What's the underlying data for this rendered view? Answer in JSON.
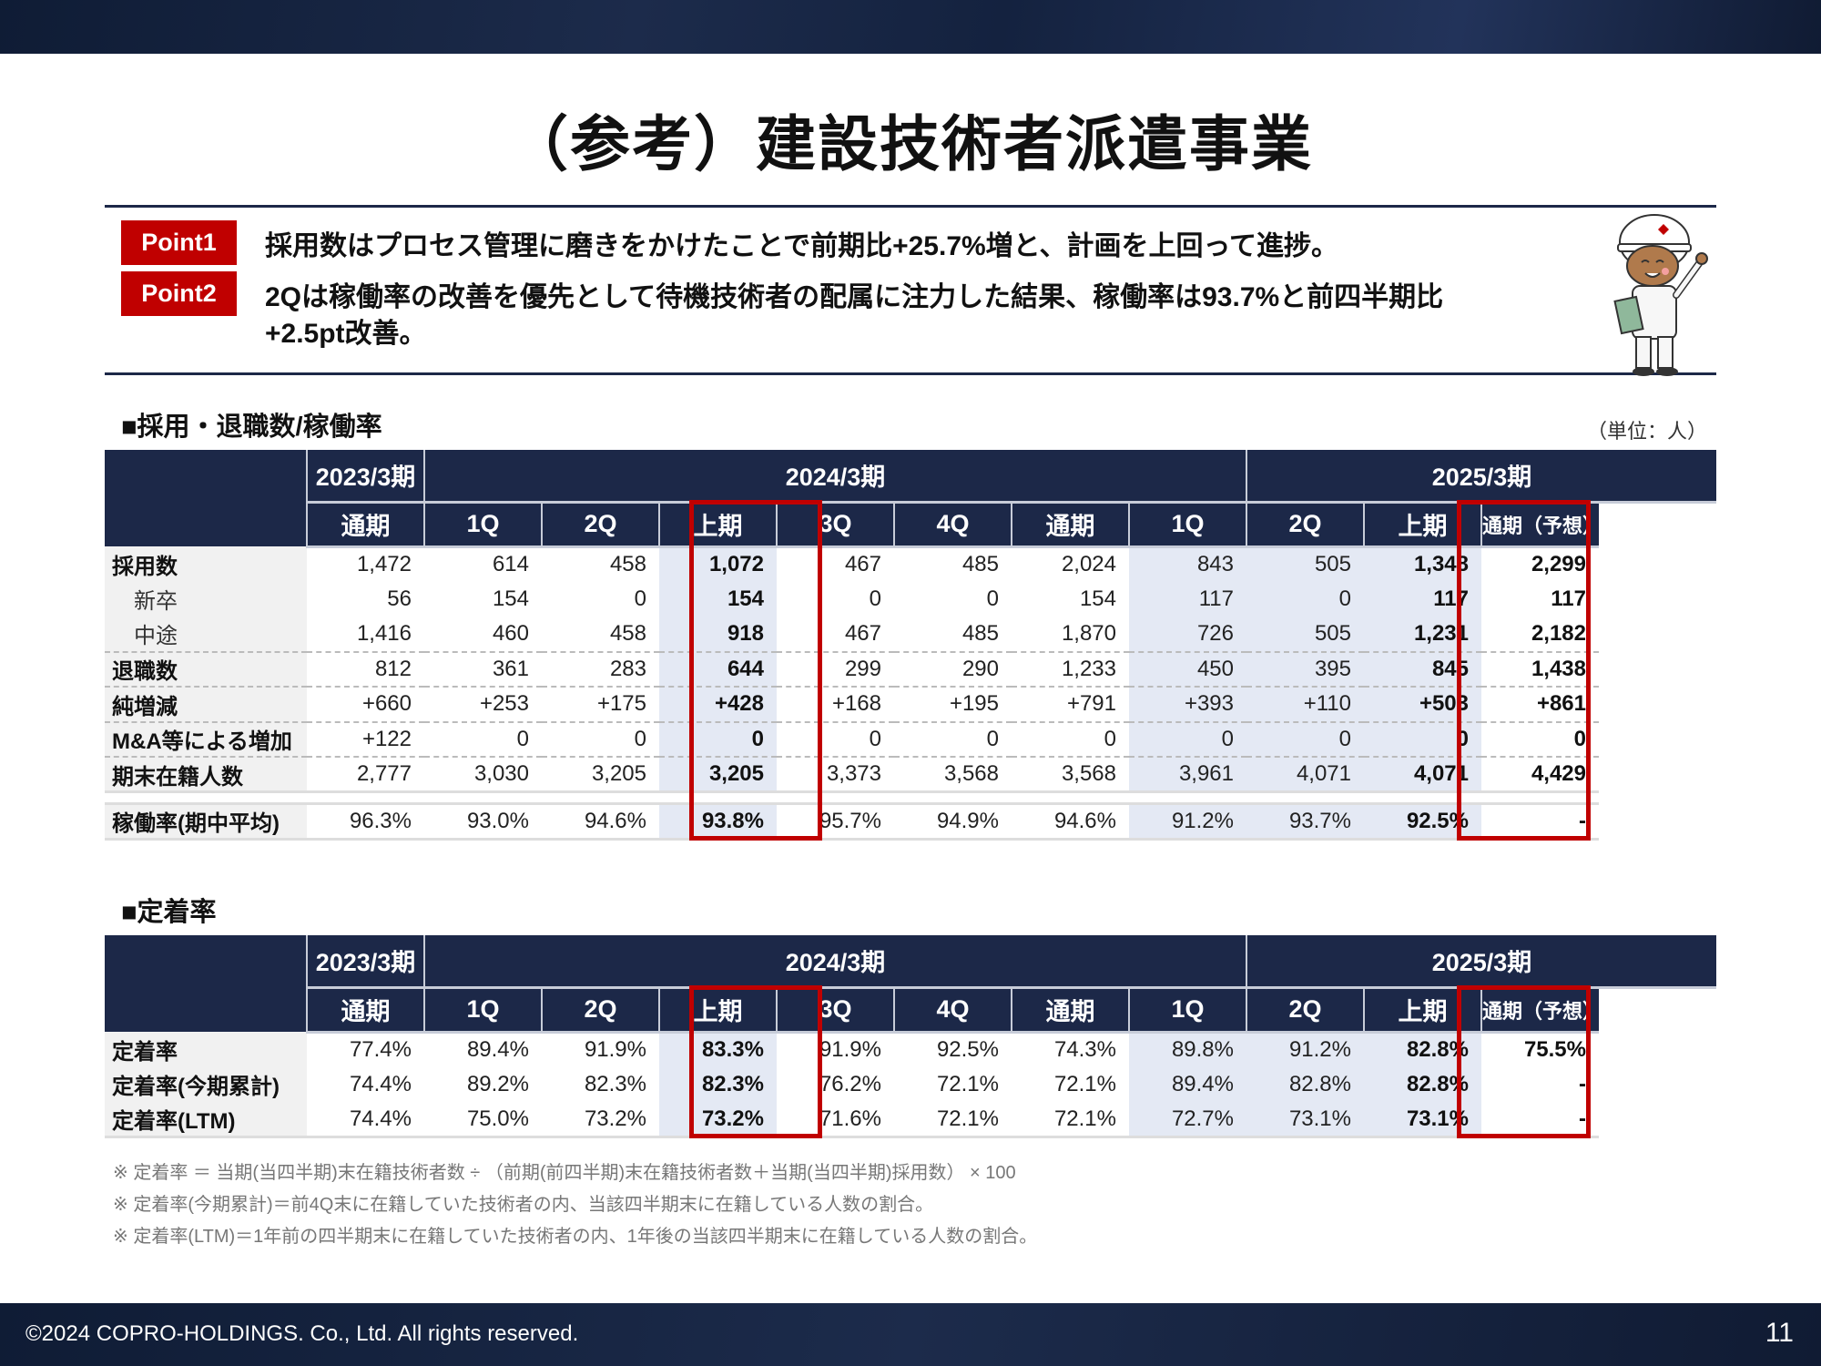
{
  "title": "（参考）建設技術者派遣事業",
  "points": [
    {
      "badge": "Point1",
      "text": "採用数はプロセス管理に磨きをかけたことで前期比+25.7%増と、計画を上回って進捗。"
    },
    {
      "badge": "Point2",
      "text": "2Qは稼働率の改善を優先として待機技術者の配属に注力した結果、稼働率は93.7%と前四半期比",
      "text2": "+2.5pt改善。"
    }
  ],
  "section1": {
    "heading": "■採用・退職数/稼働率",
    "unit": "（単位：人）"
  },
  "section2": {
    "heading": "■定着率"
  },
  "header": {
    "years": [
      "2023/3期",
      "2024/3期",
      "2025/3期"
    ],
    "columns": [
      "通期",
      "1Q",
      "2Q",
      "上期",
      "3Q",
      "4Q",
      "通期",
      "1Q",
      "2Q",
      "上期",
      "通期（予想）"
    ]
  },
  "table1": {
    "rows": [
      {
        "label": "採用数",
        "indent": false,
        "values": [
          "1,472",
          "614",
          "458",
          "1,072",
          "467",
          "485",
          "2,024",
          "843",
          "505",
          "1,348",
          "2,299"
        ]
      },
      {
        "label": "新卒",
        "indent": true,
        "values": [
          "56",
          "154",
          "0",
          "154",
          "0",
          "0",
          "154",
          "117",
          "0",
          "117",
          "117"
        ]
      },
      {
        "label": "中途",
        "indent": true,
        "values": [
          "1,416",
          "460",
          "458",
          "918",
          "467",
          "485",
          "1,870",
          "726",
          "505",
          "1,231",
          "2,182"
        ]
      },
      {
        "label": "退職数",
        "indent": false,
        "values": [
          "812",
          "361",
          "283",
          "644",
          "299",
          "290",
          "1,233",
          "450",
          "395",
          "845",
          "1,438"
        ]
      },
      {
        "label": "純増減",
        "indent": false,
        "values": [
          "+660",
          "+253",
          "+175",
          "+428",
          "+168",
          "+195",
          "+791",
          "+393",
          "+110",
          "+503",
          "+861"
        ]
      },
      {
        "label": "M&A等による増加",
        "indent": false,
        "values": [
          "+122",
          "0",
          "0",
          "0",
          "0",
          "0",
          "0",
          "0",
          "0",
          "0",
          "0"
        ]
      },
      {
        "label": "期末在籍人数",
        "indent": false,
        "values": [
          "2,777",
          "3,030",
          "3,205",
          "3,205",
          "3,373",
          "3,568",
          "3,568",
          "3,961",
          "4,071",
          "4,071",
          "4,429"
        ]
      }
    ],
    "utilization": {
      "label": "稼働率(期中平均)",
      "values": [
        "96.3%",
        "93.0%",
        "94.6%",
        "93.8%",
        "95.7%",
        "94.9%",
        "94.6%",
        "91.2%",
        "93.7%",
        "92.5%",
        "-"
      ]
    }
  },
  "table2": {
    "rows": [
      {
        "label": "定着率",
        "values": [
          "77.4%",
          "89.4%",
          "91.9%",
          "83.3%",
          "91.9%",
          "92.5%",
          "74.3%",
          "89.8%",
          "91.2%",
          "82.8%",
          "75.5%"
        ]
      },
      {
        "label": "定着率(今期累計)",
        "values": [
          "74.4%",
          "89.2%",
          "82.3%",
          "82.3%",
          "76.2%",
          "72.1%",
          "72.1%",
          "89.4%",
          "82.8%",
          "82.8%",
          "-"
        ]
      },
      {
        "label": "定着率(LTM)",
        "values": [
          "74.4%",
          "75.0%",
          "73.2%",
          "73.2%",
          "71.6%",
          "72.1%",
          "72.1%",
          "72.7%",
          "73.1%",
          "73.1%",
          "-"
        ]
      }
    ]
  },
  "notes": [
    "※ 定着率 ＝ 当期(当四半期)末在籍技術者数 ÷ （前期(前四半期)末在籍技術者数＋当期(当四半期)採用数） × 100",
    "※ 定着率(今期累計)＝前4Q末に在籍していた技術者の内、当該四半期末に在籍している人数の割合。",
    "※ 定着率(LTM)＝1年前の四半期末に在籍していた技術者の内、1年後の当該四半期末に在籍している人数の割合。"
  ],
  "footer": {
    "copyright": "©2024 COPRO-HOLDINGS. Co., Ltd. All rights reserved.",
    "page": "11"
  },
  "colors": {
    "navy": "#1c2848",
    "accent_red": "#c00000",
    "highlight": "#e4e9f4"
  }
}
